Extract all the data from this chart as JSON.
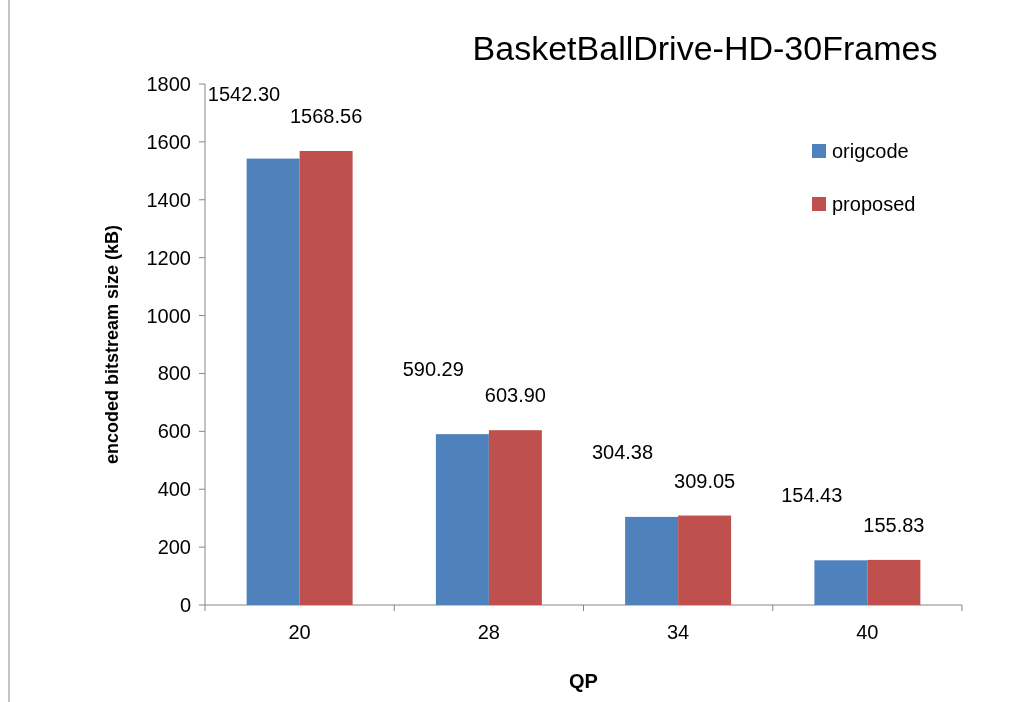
{
  "chart_data": {
    "type": "bar",
    "title": "BasketBallDrive-HD-30Frames",
    "xlabel": "QP",
    "ylabel": "encoded bitstream size (kB)",
    "categories": [
      "20",
      "28",
      "34",
      "40"
    ],
    "series": [
      {
        "name": "origcode",
        "color": "#4f81bd",
        "values": [
          1542.3,
          590.29,
          304.38,
          154.43
        ],
        "value_labels": [
          "1542.30",
          "590.29",
          "304.38",
          "154.43"
        ]
      },
      {
        "name": "proposed",
        "color": "#c0504d",
        "values": [
          1568.56,
          603.9,
          309.05,
          155.83
        ],
        "value_labels": [
          "1568.56",
          "603.90",
          "309.05",
          "155.83"
        ]
      }
    ],
    "ylim": [
      0,
      1800
    ],
    "yticks": [
      0,
      200,
      400,
      600,
      800,
      1000,
      1200,
      1400,
      1600,
      1800
    ],
    "grid": false,
    "legend": "right"
  }
}
